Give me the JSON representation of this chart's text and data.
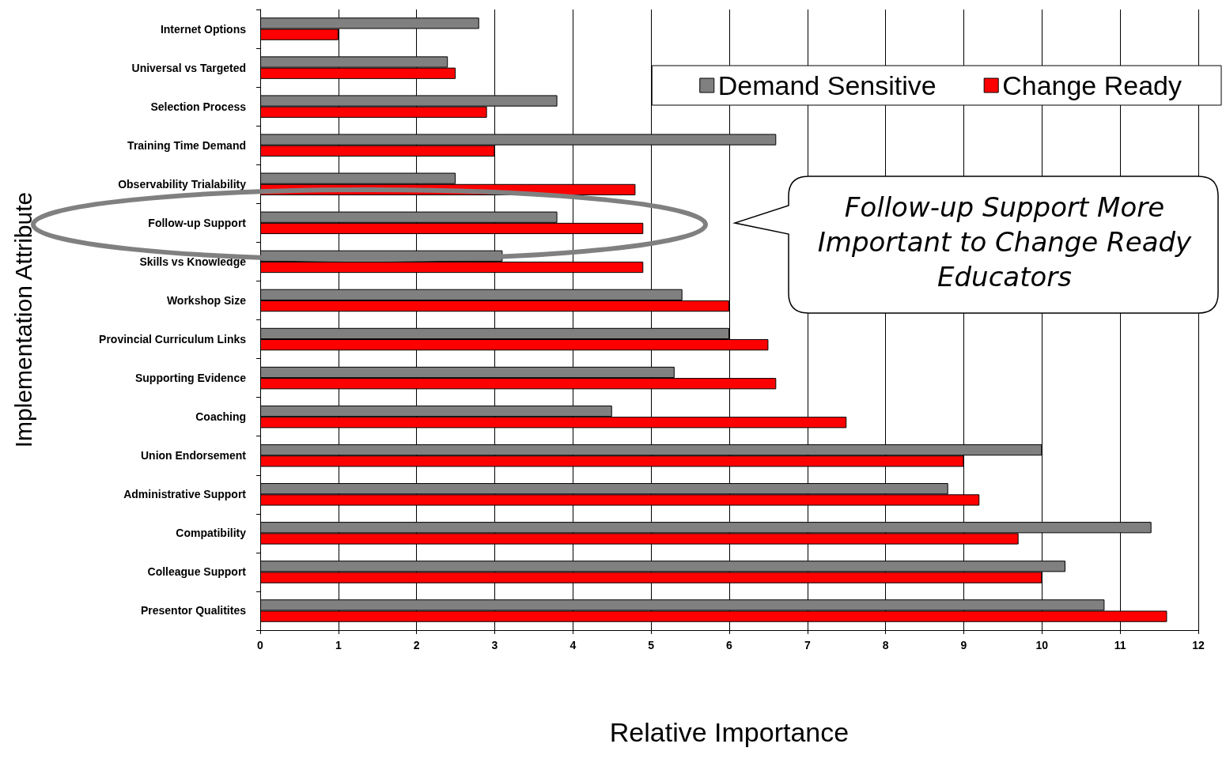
{
  "chart_data": {
    "type": "bar",
    "orientation": "horizontal",
    "xlabel": "Relative Importance",
    "ylabel": "Implementation Attribute",
    "categories": [
      "Internet Options",
      "Universal vs Targeted",
      "Selection Process",
      "Training Time Demand",
      "Observability Trialability",
      "Follow-up Support",
      "Skills vs Knowledge",
      "Workshop Size",
      "Provincial Curriculum Links",
      "Supporting Evidence",
      "Coaching",
      "Union Endorsement",
      "Administrative Support",
      "Compatibility",
      "Colleague Support",
      "Presentor Qualitites"
    ],
    "series": [
      {
        "name": "Demand Sensitive",
        "color": "#808080",
        "values": [
          2.8,
          2.4,
          3.8,
          6.6,
          2.5,
          3.8,
          3.1,
          5.4,
          6.0,
          5.3,
          4.5,
          10.0,
          8.8,
          11.4,
          10.3,
          10.8
        ]
      },
      {
        "name": "Change Ready",
        "color": "#ff0000",
        "values": [
          1.0,
          2.5,
          2.9,
          3.0,
          4.8,
          4.9,
          4.9,
          6.0,
          6.5,
          6.6,
          7.5,
          9.0,
          9.2,
          9.7,
          10.0,
          11.6
        ]
      }
    ],
    "xlim": [
      0,
      12
    ],
    "xticks": [
      0,
      1,
      2,
      3,
      4,
      5,
      6,
      7,
      8,
      9,
      10,
      11,
      12
    ],
    "grid": "x",
    "legend": "top right",
    "annotations": [
      "Follow-up Support More Important to Change Ready Educators"
    ]
  }
}
